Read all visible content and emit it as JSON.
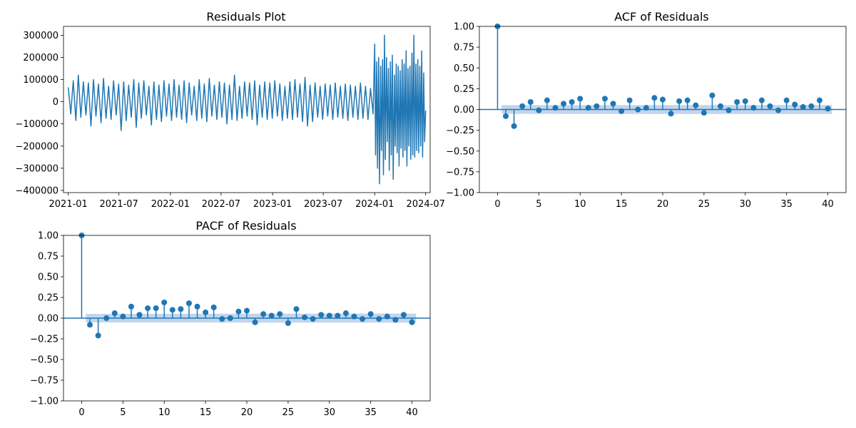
{
  "colors": {
    "series": "#1f77b4",
    "confidence_band": "#aec7e8",
    "axes": "#000000",
    "background": "#ffffff"
  },
  "chart_data": [
    {
      "id": "residuals",
      "type": "line",
      "title": "Residuals Plot",
      "xlabel": "",
      "ylabel": "",
      "grid": false,
      "x_range": [
        "2020-12-15",
        "2024-07-17"
      ],
      "ylim": [
        -410000,
        340000
      ],
      "x_ticks": [
        {
          "value": "2021-01-01",
          "label": "2021-01"
        },
        {
          "value": "2021-07-01",
          "label": "2021-07"
        },
        {
          "value": "2022-01-01",
          "label": "2022-01"
        },
        {
          "value": "2022-07-01",
          "label": "2022-07"
        },
        {
          "value": "2023-01-01",
          "label": "2023-01"
        },
        {
          "value": "2023-07-01",
          "label": "2023-07"
        },
        {
          "value": "2024-01-01",
          "label": "2024-01"
        },
        {
          "value": "2024-07-01",
          "label": "2024-07"
        }
      ],
      "y_ticks": [
        {
          "value": 300000,
          "label": "300000"
        },
        {
          "value": 200000,
          "label": "200000"
        },
        {
          "value": 100000,
          "label": "100000"
        },
        {
          "value": 0,
          "label": "0"
        },
        {
          "value": -100000,
          "label": "−100000"
        },
        {
          "value": -200000,
          "label": "−200000"
        },
        {
          "value": -300000,
          "label": "−300000"
        },
        {
          "value": -400000,
          "label": "−400000"
        }
      ],
      "series": [
        {
          "x": [
            "2021-01-01",
            "2021-01-10",
            "2021-01-19",
            "2021-01-28",
            "2021-02-06",
            "2021-02-15",
            "2021-02-24",
            "2021-03-05",
            "2021-03-14",
            "2021-03-23",
            "2021-04-01",
            "2021-04-10",
            "2021-04-19",
            "2021-04-28",
            "2021-05-07",
            "2021-05-16",
            "2021-05-25",
            "2021-06-03",
            "2021-06-12",
            "2021-06-21",
            "2021-06-30",
            "2021-07-09",
            "2021-07-18",
            "2021-07-27",
            "2021-08-05",
            "2021-08-14",
            "2021-08-23",
            "2021-09-01",
            "2021-09-10",
            "2021-09-19",
            "2021-09-28",
            "2021-10-07",
            "2021-10-16",
            "2021-10-25",
            "2021-11-03",
            "2021-11-12",
            "2021-11-21",
            "2021-11-30",
            "2021-12-09",
            "2021-12-18",
            "2021-12-27",
            "2022-01-05",
            "2022-01-14",
            "2022-01-23",
            "2022-02-01",
            "2022-02-10",
            "2022-02-19",
            "2022-02-28",
            "2022-03-09",
            "2022-03-18",
            "2022-03-27",
            "2022-04-05",
            "2022-04-14",
            "2022-04-23",
            "2022-05-02",
            "2022-05-11",
            "2022-05-20",
            "2022-05-29",
            "2022-06-07",
            "2022-06-16",
            "2022-06-25",
            "2022-07-04",
            "2022-07-13",
            "2022-07-22",
            "2022-07-31",
            "2022-08-09",
            "2022-08-18",
            "2022-08-27",
            "2022-09-05",
            "2022-09-14",
            "2022-09-23",
            "2022-10-02",
            "2022-10-11",
            "2022-10-20",
            "2022-10-29",
            "2022-11-07",
            "2022-11-16",
            "2022-11-25",
            "2022-12-04",
            "2022-12-13",
            "2022-12-22",
            "2022-12-31",
            "2023-01-09",
            "2023-01-18",
            "2023-01-27",
            "2023-02-05",
            "2023-02-14",
            "2023-02-23",
            "2023-03-04",
            "2023-03-13",
            "2023-03-22",
            "2023-03-31",
            "2023-04-09",
            "2023-04-18",
            "2023-04-27",
            "2023-05-06",
            "2023-05-15",
            "2023-05-24",
            "2023-06-02",
            "2023-06-11",
            "2023-06-20",
            "2023-06-29",
            "2023-07-08",
            "2023-07-17",
            "2023-07-26",
            "2023-08-04",
            "2023-08-13",
            "2023-08-22",
            "2023-08-31",
            "2023-09-09",
            "2023-09-18",
            "2023-09-27",
            "2023-10-06",
            "2023-10-15",
            "2023-10-24",
            "2023-11-02",
            "2023-11-11",
            "2023-11-20",
            "2023-11-29",
            "2023-12-08",
            "2023-12-17",
            "2023-12-26",
            "2024-01-01",
            "2024-01-04",
            "2024-01-08",
            "2024-01-11",
            "2024-01-15",
            "2024-01-18",
            "2024-01-22",
            "2024-01-25",
            "2024-01-29",
            "2024-02-01",
            "2024-02-05",
            "2024-02-08",
            "2024-02-12",
            "2024-02-15",
            "2024-02-19",
            "2024-02-22",
            "2024-02-26",
            "2024-02-29",
            "2024-03-04",
            "2024-03-07",
            "2024-03-11",
            "2024-03-14",
            "2024-03-18",
            "2024-03-21",
            "2024-03-25",
            "2024-03-28",
            "2024-04-01",
            "2024-04-04",
            "2024-04-08",
            "2024-04-11",
            "2024-04-15",
            "2024-04-18",
            "2024-04-22",
            "2024-04-25",
            "2024-04-29",
            "2024-05-02",
            "2024-05-06",
            "2024-05-09",
            "2024-05-13",
            "2024-05-16",
            "2024-05-20",
            "2024-05-23",
            "2024-05-27",
            "2024-05-30",
            "2024-06-03",
            "2024-06-06",
            "2024-06-10",
            "2024-06-13",
            "2024-06-17",
            "2024-06-20",
            "2024-06-24",
            "2024-06-27",
            "2024-07-01"
          ],
          "y": [
            65000,
            -55000,
            95000,
            -85000,
            120000,
            -70000,
            90000,
            -60000,
            85000,
            -110000,
            100000,
            -65000,
            80000,
            -95000,
            105000,
            -75000,
            70000,
            -80000,
            95000,
            -60000,
            80000,
            -130000,
            90000,
            -85000,
            75000,
            -70000,
            100000,
            -115000,
            85000,
            -75000,
            95000,
            -60000,
            70000,
            -105000,
            90000,
            -80000,
            75000,
            -90000,
            95000,
            -65000,
            80000,
            -85000,
            100000,
            -70000,
            75000,
            -80000,
            95000,
            -95000,
            85000,
            -60000,
            70000,
            -85000,
            100000,
            -75000,
            80000,
            -90000,
            105000,
            -65000,
            75000,
            -80000,
            90000,
            -70000,
            85000,
            -100000,
            75000,
            -80000,
            120000,
            -85000,
            70000,
            -75000,
            90000,
            -65000,
            85000,
            -80000,
            95000,
            -105000,
            75000,
            -70000,
            90000,
            -80000,
            85000,
            -75000,
            95000,
            -65000,
            80000,
            -85000,
            70000,
            -75000,
            90000,
            -80000,
            100000,
            -70000,
            80000,
            -90000,
            110000,
            -110000,
            75000,
            -90000,
            85000,
            -70000,
            70000,
            -80000,
            80000,
            -65000,
            75000,
            -80000,
            85000,
            -70000,
            70000,
            -75000,
            80000,
            -85000,
            75000,
            -70000,
            70000,
            -80000,
            85000,
            -75000,
            70000,
            -80000,
            60000,
            -55000,
            260000,
            -240000,
            180000,
            -300000,
            200000,
            -370000,
            160000,
            -220000,
            190000,
            -330000,
            300000,
            -260000,
            200000,
            -180000,
            150000,
            -310000,
            180000,
            -240000,
            210000,
            -350000,
            120000,
            -200000,
            170000,
            -230000,
            160000,
            -290000,
            140000,
            -210000,
            190000,
            -250000,
            170000,
            -220000,
            230000,
            -290000,
            150000,
            -200000,
            160000,
            -260000,
            220000,
            -240000,
            300000,
            -250000,
            170000,
            -220000,
            190000,
            -230000,
            160000,
            -200000,
            230000,
            -250000,
            130000,
            -180000,
            -40000
          ]
        }
      ]
    },
    {
      "id": "acf",
      "type": "scatter",
      "title": "ACF of Residuals",
      "xlabel": "",
      "ylabel": "",
      "grid": false,
      "xlim": [
        -2.2,
        42.2
      ],
      "ylim": [
        -1.0,
        1.0
      ],
      "x_ticks": [
        0,
        5,
        10,
        15,
        20,
        25,
        30,
        35,
        40
      ],
      "y_ticks": [
        {
          "value": 1.0,
          "label": "1.00"
        },
        {
          "value": 0.75,
          "label": "0.75"
        },
        {
          "value": 0.5,
          "label": "0.50"
        },
        {
          "value": 0.25,
          "label": "0.25"
        },
        {
          "value": 0.0,
          "label": "0.00"
        },
        {
          "value": -0.25,
          "label": "−0.25"
        },
        {
          "value": -0.5,
          "label": "−0.50"
        },
        {
          "value": -0.75,
          "label": "−0.75"
        },
        {
          "value": -1.0,
          "label": "−1.00"
        }
      ],
      "confidence_band": {
        "x": [
          0.5,
          40.5
        ],
        "lower": [
          -0.052,
          -0.055
        ],
        "upper": [
          0.052,
          0.055
        ]
      },
      "lags": [
        0,
        1,
        2,
        3,
        4,
        5,
        6,
        7,
        8,
        9,
        10,
        11,
        12,
        13,
        14,
        15,
        16,
        17,
        18,
        19,
        20,
        21,
        22,
        23,
        24,
        25,
        26,
        27,
        28,
        29,
        30,
        31,
        32,
        33,
        34,
        35,
        36,
        37,
        38,
        39,
        40
      ],
      "values": [
        1.0,
        -0.08,
        -0.2,
        0.04,
        0.09,
        -0.01,
        0.11,
        0.02,
        0.07,
        0.09,
        0.13,
        0.02,
        0.04,
        0.13,
        0.07,
        -0.02,
        0.11,
        0.0,
        0.02,
        0.14,
        0.12,
        -0.05,
        0.1,
        0.11,
        0.05,
        -0.04,
        0.17,
        0.04,
        -0.01,
        0.09,
        0.1,
        0.02,
        0.11,
        0.04,
        -0.01,
        0.11,
        0.06,
        0.03,
        0.04,
        0.11,
        0.01
      ]
    },
    {
      "id": "pacf",
      "type": "scatter",
      "title": "PACF of Residuals",
      "xlabel": "",
      "ylabel": "",
      "grid": false,
      "xlim": [
        -2.2,
        42.2
      ],
      "ylim": [
        -1.0,
        1.0
      ],
      "x_ticks": [
        0,
        5,
        10,
        15,
        20,
        25,
        30,
        35,
        40
      ],
      "y_ticks": [
        {
          "value": 1.0,
          "label": "1.00"
        },
        {
          "value": 0.75,
          "label": "0.75"
        },
        {
          "value": 0.5,
          "label": "0.50"
        },
        {
          "value": 0.25,
          "label": "0.25"
        },
        {
          "value": 0.0,
          "label": "0.00"
        },
        {
          "value": -0.25,
          "label": "−0.25"
        },
        {
          "value": -0.5,
          "label": "−0.50"
        },
        {
          "value": -0.75,
          "label": "−0.75"
        },
        {
          "value": -1.0,
          "label": "−1.00"
        }
      ],
      "confidence_band": {
        "x": [
          0.5,
          40.5
        ],
        "lower": [
          -0.052,
          -0.055
        ],
        "upper": [
          0.052,
          0.055
        ]
      },
      "lags": [
        0,
        1,
        2,
        3,
        4,
        5,
        6,
        7,
        8,
        9,
        10,
        11,
        12,
        13,
        14,
        15,
        16,
        17,
        18,
        19,
        20,
        21,
        22,
        23,
        24,
        25,
        26,
        27,
        28,
        29,
        30,
        31,
        32,
        33,
        34,
        35,
        36,
        37,
        38,
        39,
        40
      ],
      "values": [
        1.0,
        -0.08,
        -0.21,
        0.0,
        0.06,
        0.02,
        0.14,
        0.04,
        0.12,
        0.12,
        0.19,
        0.1,
        0.11,
        0.18,
        0.14,
        0.07,
        0.13,
        -0.01,
        0.0,
        0.08,
        0.09,
        -0.05,
        0.05,
        0.03,
        0.05,
        -0.06,
        0.11,
        0.01,
        -0.01,
        0.04,
        0.03,
        0.03,
        0.06,
        0.02,
        -0.01,
        0.05,
        -0.01,
        0.02,
        -0.02,
        0.04,
        -0.05
      ]
    }
  ]
}
